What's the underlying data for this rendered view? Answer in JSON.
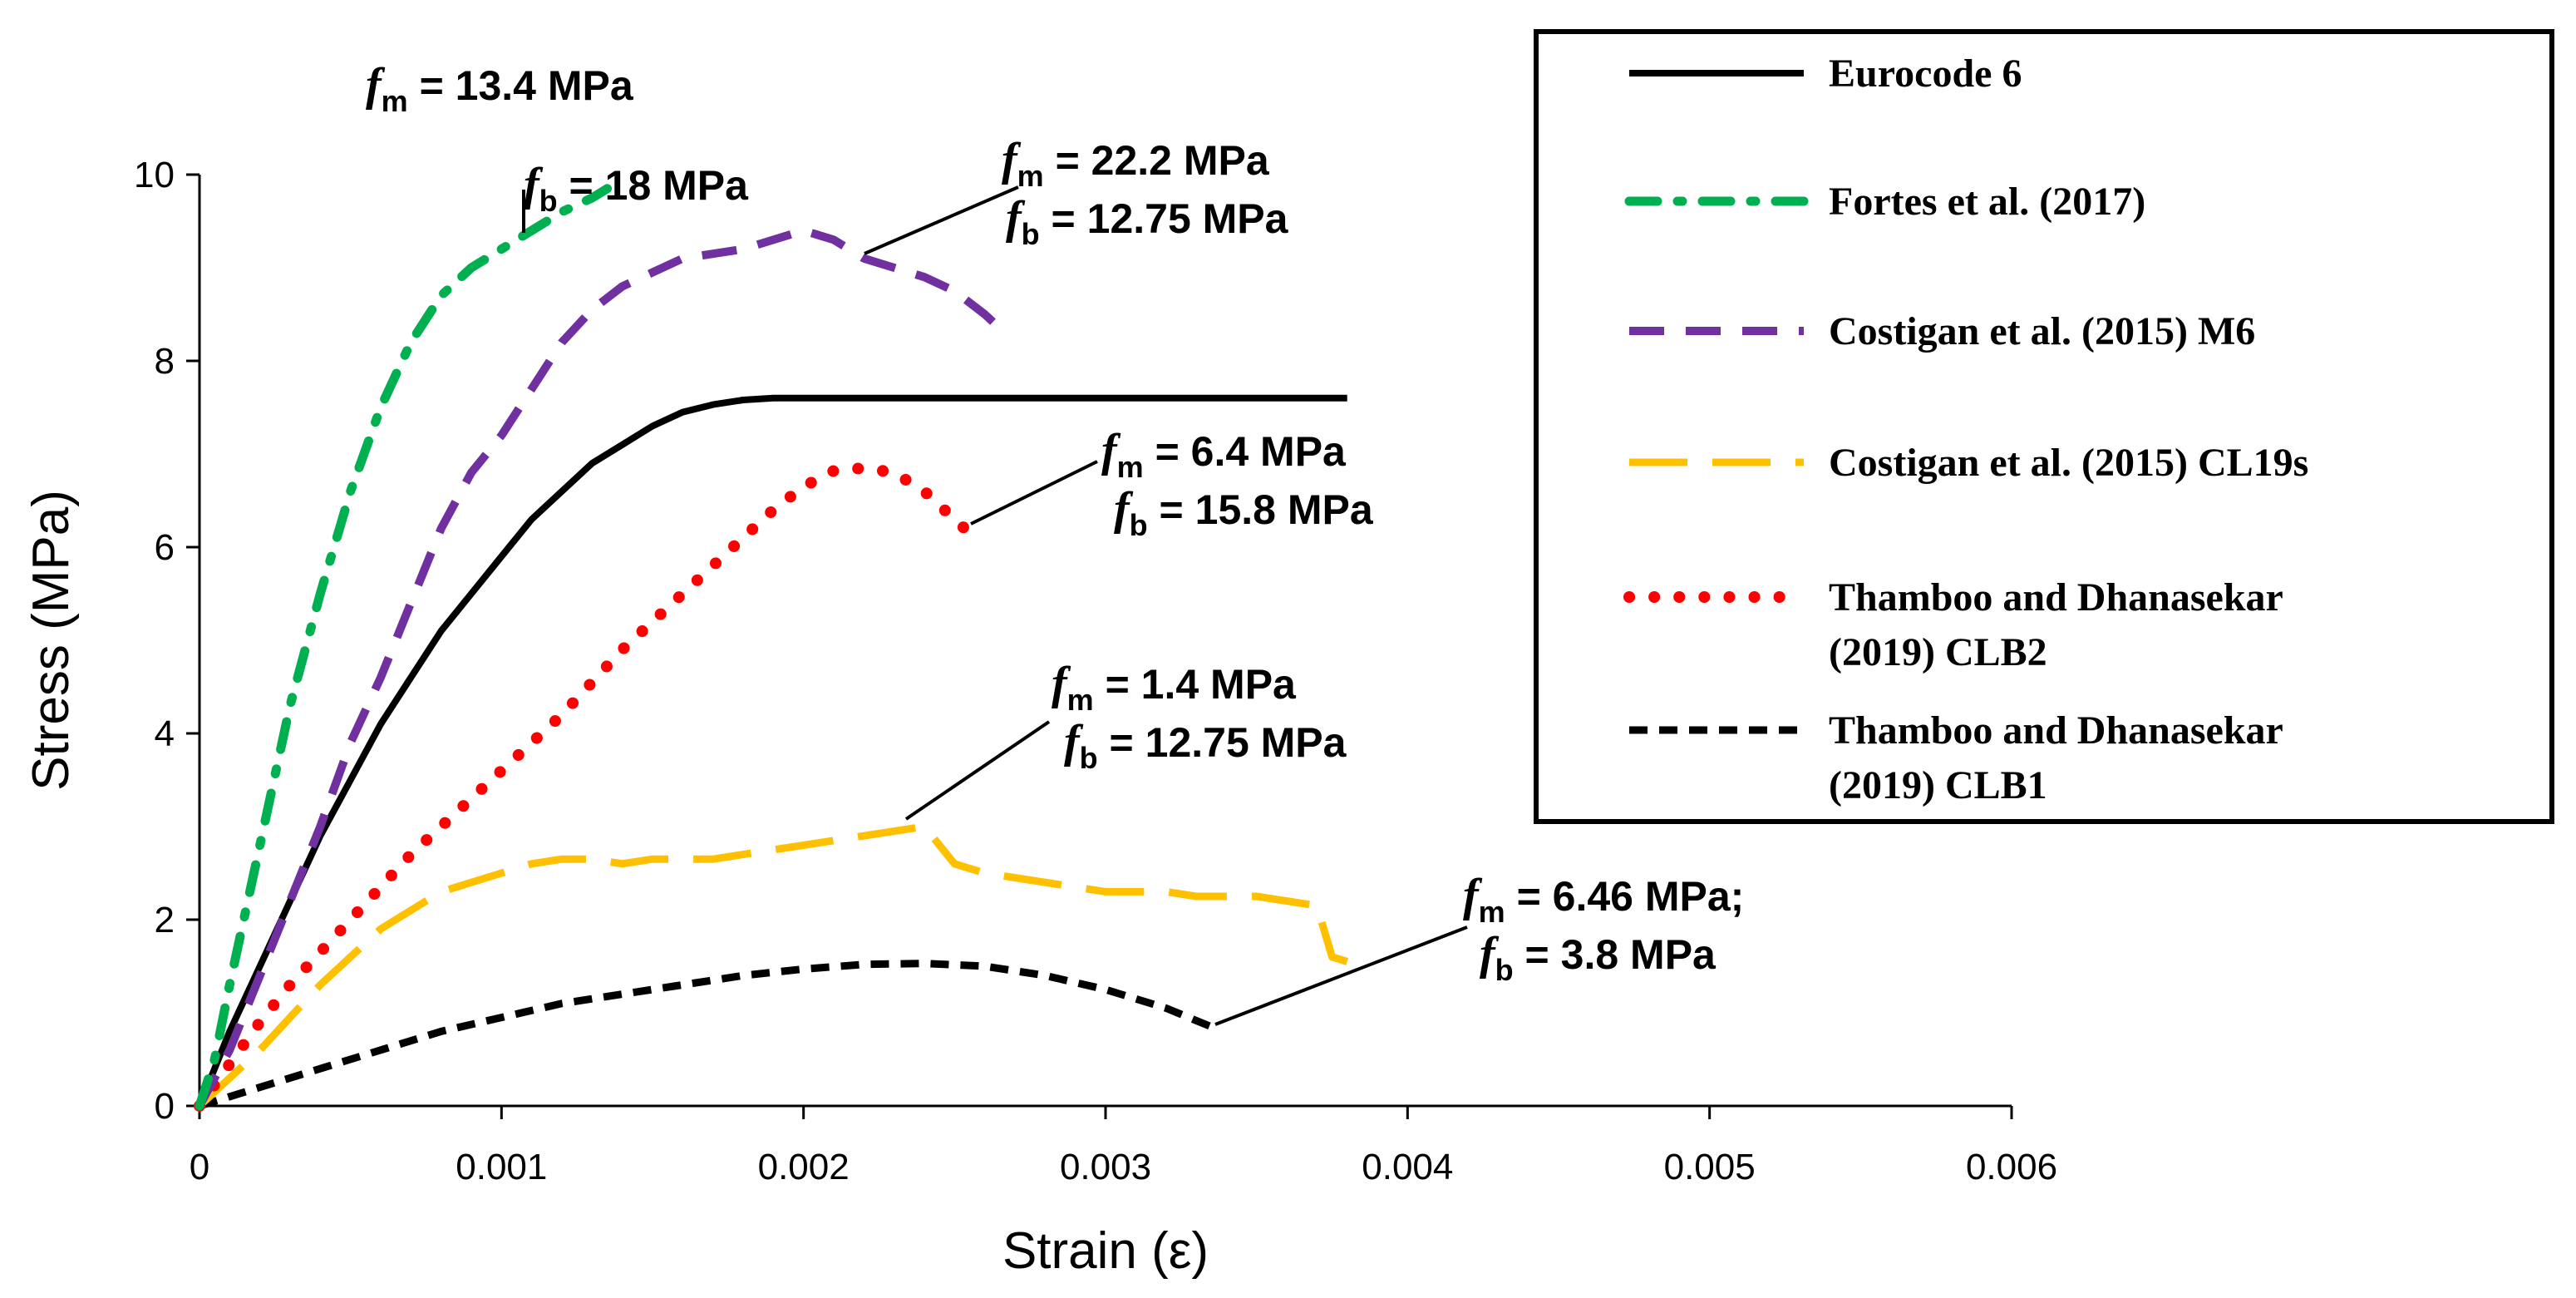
{
  "chart_data": {
    "type": "line",
    "title": "",
    "xlabel": "Strain (ε)",
    "ylabel": "Stress (MPa)",
    "xlim": [
      0,
      0.006
    ],
    "ylim": [
      0,
      10
    ],
    "xticks": [
      "0",
      "0.001",
      "0.002",
      "0.003",
      "0.004",
      "0.005",
      "0.006"
    ],
    "yticks": [
      "0",
      "2",
      "4",
      "6",
      "8",
      "10"
    ],
    "legend_position": "top-right",
    "series": [
      {
        "name": "Eurocode 6",
        "color": "#000000",
        "style": "solid",
        "x": [
          0,
          0.0001,
          0.0002,
          0.0003,
          0.0004,
          0.0005,
          0.0006,
          0.0007,
          0.0008,
          0.0009,
          0.001,
          0.0011,
          0.0012,
          0.0013,
          0.0014,
          0.0015,
          0.0016,
          0.0017,
          0.0018,
          0.0019,
          0.002,
          0.0025,
          0.003,
          0.0035,
          0.0038
        ],
        "y": [
          0,
          0.8,
          1.5,
          2.2,
          2.9,
          3.5,
          4.1,
          4.6,
          5.1,
          5.5,
          5.9,
          6.3,
          6.6,
          6.9,
          7.1,
          7.3,
          7.45,
          7.53,
          7.58,
          7.6,
          7.6,
          7.6,
          7.6,
          7.6,
          7.6
        ]
      },
      {
        "name": "Fortes et al. (2017)",
        "color": "#00b050",
        "style": "dashdot",
        "x": [
          0,
          5e-05,
          0.0001,
          0.0002,
          0.0003,
          0.0004,
          0.0005,
          0.0006,
          0.0007,
          0.0008,
          0.0009,
          0.001,
          0.0011,
          0.0012,
          0.0013,
          0.00135
        ],
        "y": [
          0,
          0.5,
          1.3,
          2.8,
          4.3,
          5.5,
          6.6,
          7.5,
          8.2,
          8.7,
          9.0,
          9.2,
          9.4,
          9.6,
          9.75,
          9.85
        ]
      },
      {
        "name": "Costigan et al. (2015) M6",
        "color": "#7030a0",
        "style": "dashed",
        "x": [
          0,
          0.0001,
          0.0002,
          0.0003,
          0.0004,
          0.0005,
          0.0006,
          0.0007,
          0.0008,
          0.0009,
          0.001,
          0.0011,
          0.0012,
          0.0013,
          0.0014,
          0.0015,
          0.0016,
          0.0017,
          0.0018,
          0.0019,
          0.002,
          0.0021,
          0.0022,
          0.0023,
          0.0024,
          0.0025,
          0.0026,
          0.00265
        ],
        "y": [
          0,
          0.6,
          1.4,
          2.2,
          3.0,
          3.9,
          4.6,
          5.4,
          6.2,
          6.8,
          7.2,
          7.7,
          8.2,
          8.55,
          8.8,
          8.95,
          9.1,
          9.15,
          9.2,
          9.3,
          9.4,
          9.3,
          9.1,
          9.0,
          8.9,
          8.75,
          8.5,
          8.35
        ]
      },
      {
        "name": "Costigan et al. (2015) CL19s",
        "color": "#ffc000",
        "style": "longdash",
        "x": [
          0,
          0.0001,
          0.0002,
          0.0003,
          0.0004,
          0.0005,
          0.0006,
          0.0007,
          0.0008,
          0.0009,
          0.001,
          0.0011,
          0.0012,
          0.0013,
          0.0014,
          0.0015,
          0.0016,
          0.0017,
          0.0018,
          0.0019,
          0.002,
          0.0021,
          0.0022,
          0.0023,
          0.0024,
          0.0025,
          0.0026,
          0.0027,
          0.0028,
          0.0029,
          0.003,
          0.0031,
          0.0032,
          0.0033,
          0.0034,
          0.0035,
          0.0036,
          0.0037,
          0.00375,
          0.0038
        ],
        "y": [
          0,
          0.3,
          0.6,
          0.95,
          1.3,
          1.6,
          1.9,
          2.1,
          2.3,
          2.4,
          2.5,
          2.6,
          2.65,
          2.65,
          2.6,
          2.65,
          2.65,
          2.65,
          2.7,
          2.75,
          2.8,
          2.85,
          2.9,
          2.95,
          3.0,
          2.6,
          2.5,
          2.45,
          2.4,
          2.35,
          2.3,
          2.3,
          2.3,
          2.25,
          2.25,
          2.25,
          2.2,
          2.15,
          1.6,
          1.55
        ]
      },
      {
        "name": "Thamboo and Dhanasekar (2019) CLB2",
        "color": "#ff0000",
        "style": "dotted",
        "x": [
          0,
          0.0001,
          0.0002,
          0.0003,
          0.0004,
          0.0005,
          0.0006,
          0.0007,
          0.0008,
          0.0009,
          0.001,
          0.0011,
          0.0012,
          0.0013,
          0.0014,
          0.0015,
          0.0016,
          0.0017,
          0.0018,
          0.0019,
          0.002,
          0.0021,
          0.0022,
          0.0023,
          0.0024,
          0.0025,
          0.00255
        ],
        "y": [
          0,
          0.45,
          0.9,
          1.3,
          1.65,
          2.0,
          2.35,
          2.7,
          3.0,
          3.3,
          3.6,
          3.9,
          4.2,
          4.55,
          4.9,
          5.2,
          5.5,
          5.8,
          6.1,
          6.4,
          6.65,
          6.82,
          6.85,
          6.8,
          6.6,
          6.3,
          6.15
        ]
      },
      {
        "name": "Thamboo and Dhanasekar (2019) CLB1",
        "color": "#000000",
        "style": "shortdash",
        "x": [
          0,
          0.0002,
          0.0004,
          0.0006,
          0.0008,
          0.001,
          0.0012,
          0.0014,
          0.0016,
          0.0018,
          0.002,
          0.0022,
          0.0024,
          0.0026,
          0.0028,
          0.003,
          0.0032,
          0.00335
        ],
        "y": [
          0,
          0.2,
          0.4,
          0.6,
          0.8,
          0.95,
          1.1,
          1.2,
          1.3,
          1.4,
          1.47,
          1.52,
          1.53,
          1.5,
          1.4,
          1.25,
          1.05,
          0.85
        ]
      }
    ],
    "annotations": [
      {
        "fm": "13.4 MPa",
        "fb": "18 MPa",
        "fm_suffix": "",
        "series": "Fortes et al. (2017)"
      },
      {
        "fm": "22.2 MPa",
        "fb": "12.75 MPa",
        "fm_suffix": "",
        "series": "Costigan et al. (2015) M6"
      },
      {
        "fm": "6.4 MPa",
        "fb": "15.8 MPa",
        "fm_suffix": "",
        "series": "Thamboo and Dhanasekar (2019) CLB2"
      },
      {
        "fm": "1.4 MPa",
        "fb": "12.75 MPa",
        "fm_suffix": "",
        "series": "Costigan et al. (2015) CL19s"
      },
      {
        "fm": "6.46 MPa",
        "fb": "3.8 MPa",
        "fm_suffix": ";",
        "series": "Thamboo and Dhanasekar (2019) CLB1"
      }
    ],
    "annotation_symbols": {
      "f": "f",
      "m": "m",
      "b": "b",
      "eq": " = "
    }
  }
}
